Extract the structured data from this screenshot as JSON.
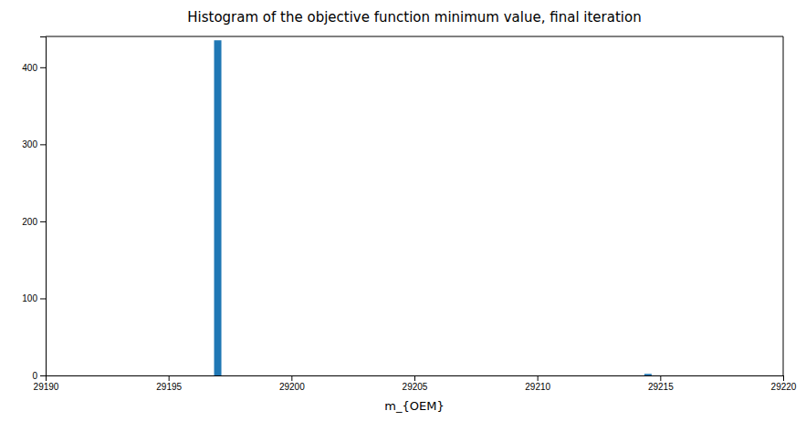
{
  "chart_data": {
    "type": "bar",
    "title": "Histogram of the objective function minimum value, final iteration",
    "xlabel": "m_{OEM}",
    "x": [
      29197.0,
      29214.5
    ],
    "values": [
      435,
      2
    ],
    "color": "#1f77b4",
    "xlim": [
      29190,
      29220
    ],
    "ylim": [
      0,
      440
    ],
    "xticks": [
      29190,
      29195,
      29200,
      29205,
      29210,
      29215,
      29220
    ],
    "yticks": [
      0,
      100,
      200,
      300,
      400
    ],
    "grid": false
  }
}
